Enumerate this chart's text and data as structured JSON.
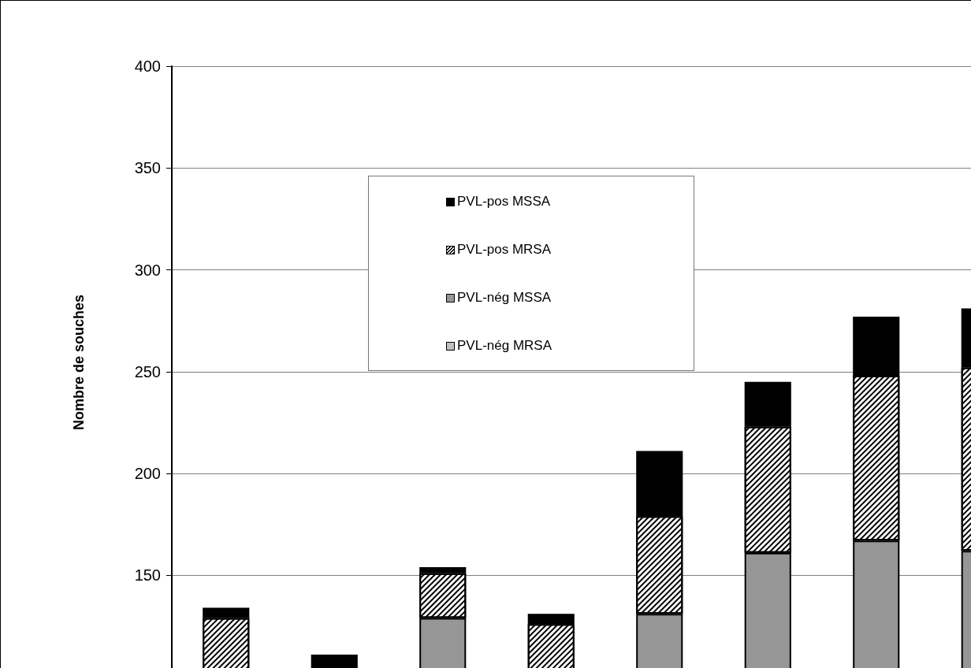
{
  "chart_data": {
    "type": "bar",
    "stacked": true,
    "ylabel": "Nombre de souches",
    "categories": [
      null,
      null,
      null,
      null,
      null,
      null,
      null,
      null
    ],
    "ylim": [
      0,
      400
    ],
    "yticks": [
      150,
      200,
      250,
      300,
      350,
      400
    ],
    "grid": "y",
    "legend": "top left",
    "tick_labels": "y",
    "series": [
      {
        "name": "PVL-nég MRSA",
        "color": "#c0c0c0",
        "values": [
          null,
          null,
          null,
          null,
          null,
          null,
          null,
          null
        ]
      },
      {
        "name": "PVL-nég MSSA",
        "color": "#969696",
        "values": [
          null,
          null,
          129,
          null,
          131,
          161,
          167,
          162
        ]
      },
      {
        "name": "PVL-pos MRSA",
        "color": "#ffffff",
        "values": [
          129,
          null,
          22,
          126,
          48,
          62,
          81,
          90
        ]
      },
      {
        "name": "PVL-pos MSSA",
        "color": "#000000",
        "values": [
          5,
          111,
          3,
          5,
          32,
          22,
          29,
          29
        ]
      }
    ]
  }
}
